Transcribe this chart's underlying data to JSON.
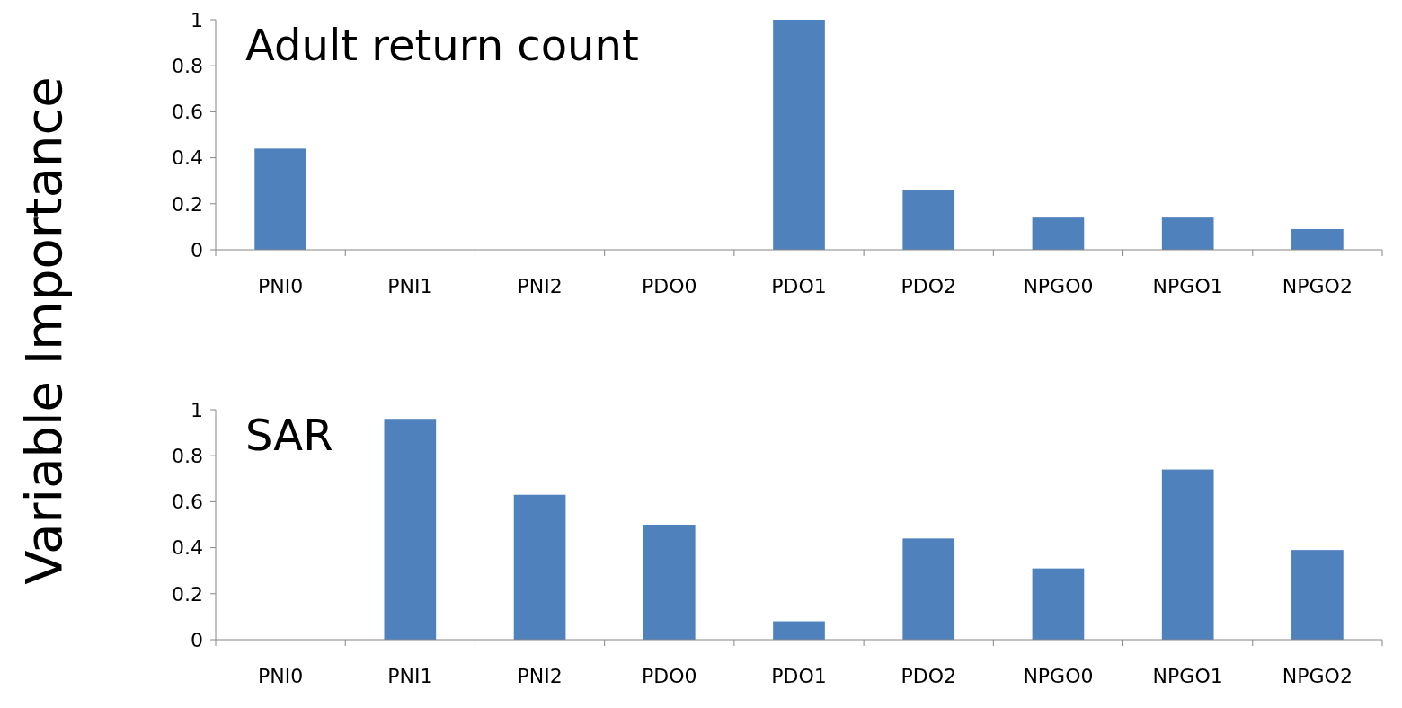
{
  "chart_data": [
    {
      "type": "bar",
      "title": "Adult return count",
      "ylabel": "Variable Importance",
      "categories": [
        "PNI0",
        "PNI1",
        "PNI2",
        "PDO0",
        "PDO1",
        "PDO2",
        "NPGO0",
        "NPGO1",
        "NPGO2"
      ],
      "values": [
        0.44,
        0,
        0,
        0,
        1,
        0.26,
        0.14,
        0.14,
        0.09
      ],
      "color": "#4f81bd",
      "ylim": [
        0,
        1
      ],
      "yticks": [
        0,
        0.2,
        0.4,
        0.6,
        0.8,
        1
      ],
      "grid": false
    },
    {
      "type": "bar",
      "title": "SAR",
      "categories": [
        "PNI0",
        "PNI1",
        "PNI2",
        "PDO0",
        "PDO1",
        "PDO2",
        "NPGO0",
        "NPGO1",
        "NPGO2"
      ],
      "values": [
        0,
        0.96,
        0.63,
        0.5,
        0.08,
        0.44,
        0.31,
        0.74,
        0.39
      ],
      "color": "#4f81bd",
      "ylim": [
        0,
        1
      ],
      "yticks": [
        0,
        0.2,
        0.4,
        0.6,
        0.8,
        1
      ],
      "grid": false
    }
  ]
}
